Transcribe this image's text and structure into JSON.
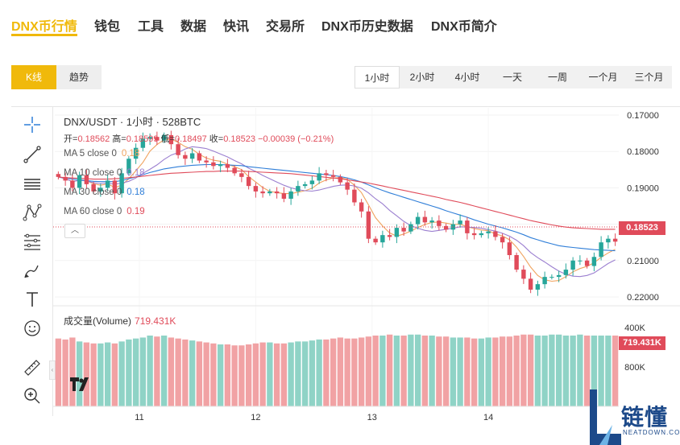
{
  "nav": {
    "items": [
      {
        "label": "DNX币行情",
        "active": true
      },
      {
        "label": "钱包"
      },
      {
        "label": "工具"
      },
      {
        "label": "数据"
      },
      {
        "label": "快讯"
      },
      {
        "label": "交易所"
      },
      {
        "label": "DNX币历史数据"
      },
      {
        "label": "DNX币简介"
      }
    ]
  },
  "mode": {
    "kline": "K线",
    "trend": "趋势",
    "active": "K线"
  },
  "intervals": {
    "items": [
      "1小时",
      "2小时",
      "4小时",
      "一天",
      "一周",
      "一个月",
      "三个月"
    ],
    "active": "1小时"
  },
  "legend": {
    "title": "DNX/USDT · 1小时 · 528BTC",
    "open_label": "开=",
    "open": "0.18562",
    "high_label": "高=",
    "high": "0.18599",
    "low_label": "低=",
    "low": "0.18497",
    "close_label": "收=",
    "close": "0.18523",
    "change": "−0.00039 (−0.21%)",
    "ma": [
      {
        "label": "MA 5 close 0",
        "value": "0.18",
        "color": "#f0a35e"
      },
      {
        "label": "MA 10 close 0",
        "value": "0.18",
        "color": "#9b7fd0"
      },
      {
        "label": "MA 30 close 0",
        "value": "0.18",
        "color": "#2f7ed8"
      },
      {
        "label": "MA 60 close 0",
        "value": "0.19",
        "color": "#e04b5a"
      }
    ],
    "collapse_icon": "chevron-up-icon"
  },
  "volume": {
    "label": "成交量(Volume)",
    "value": "719.431K"
  },
  "price_axis": {
    "ticks": [
      "0.22000",
      "0.21000",
      "0.20000",
      "0.19000",
      "0.18000",
      "0.17000"
    ],
    "current": "0.18523"
  },
  "volume_axis": {
    "ticks": [
      "800K",
      "400K"
    ],
    "current": "719.431K"
  },
  "time_axis": {
    "ticks": [
      "11",
      "12",
      "13",
      "14"
    ]
  },
  "toolbar": [
    "crosshair-icon",
    "trend-line-icon",
    "horizontal-lines-icon",
    "pattern-icon",
    "fib-icon",
    "brush-icon",
    "text-icon",
    "emoji-icon",
    "ruler-icon",
    "zoom-in-icon"
  ],
  "brand": {
    "cn": "链懂",
    "en": "NEATDOWN.COM"
  },
  "colors": {
    "accent": "#f0b90b",
    "up": "#26a69a",
    "down": "#e04b5a",
    "up_volume": "#8fd3c6",
    "down_volume": "#f1a2a4"
  },
  "chart_data": {
    "type": "candlestick",
    "title": "DNX/USDT · 1小时 · 528BTC",
    "ylim": [
      0.168,
      0.222
    ],
    "y_ticks": [
      0.17,
      0.18,
      0.19,
      0.2,
      0.21,
      0.22
    ],
    "x_ticks": [
      "11",
      "12",
      "13",
      "14"
    ],
    "x_tick_positions": [
      12,
      28.5,
      45,
      61.5
    ],
    "volume_ylim": [
      0,
      900
    ],
    "volume_ticks": [
      400,
      800
    ],
    "close": [
      0.203,
      0.202,
      0.2,
      0.2035,
      0.201,
      0.199,
      0.2,
      0.202,
      0.1985,
      0.204,
      0.208,
      0.211,
      0.2135,
      0.214,
      0.213,
      0.2145,
      0.212,
      0.209,
      0.208,
      0.2095,
      0.2075,
      0.207,
      0.206,
      0.2065,
      0.2055,
      0.204,
      0.203,
      0.2005,
      0.199,
      0.1985,
      0.199,
      0.1985,
      0.197,
      0.199,
      0.2005,
      0.201,
      0.202,
      0.204,
      0.2035,
      0.203,
      0.2015,
      0.1995,
      0.196,
      0.1935,
      0.186,
      0.185,
      0.187,
      0.1865,
      0.189,
      0.188,
      0.19,
      0.192,
      0.1905,
      0.191,
      0.1895,
      0.1885,
      0.19,
      0.191,
      0.1875,
      0.187,
      0.1875,
      0.188,
      0.1865,
      0.185,
      0.1815,
      0.1775,
      0.175,
      0.172,
      0.1735,
      0.1755,
      0.1755,
      0.176,
      0.1775,
      0.18,
      0.18,
      0.1785,
      0.181,
      0.185,
      0.186,
      0.1852
    ],
    "volume": [
      690,
      680,
      700,
      660,
      650,
      640,
      640,
      650,
      640,
      660,
      680,
      690,
      700,
      720,
      710,
      720,
      700,
      690,
      680,
      670,
      660,
      650,
      640,
      630,
      630,
      620,
      620,
      630,
      640,
      650,
      650,
      640,
      640,
      650,
      660,
      660,
      670,
      680,
      680,
      690,
      700,
      690,
      690,
      700,
      710,
      720,
      720,
      730,
      720,
      720,
      730,
      730,
      720,
      720,
      710,
      710,
      700,
      700,
      700,
      690,
      690,
      700,
      700,
      710,
      710,
      720,
      730,
      730,
      720,
      720,
      730,
      730,
      720,
      720,
      730,
      720,
      720,
      720,
      720,
      720
    ],
    "ma_series": [
      {
        "name": "MA 5",
        "values": [
          0.203,
          0.2025,
          0.2017,
          0.2021,
          0.2019,
          0.2011,
          0.2007,
          0.2011,
          0.2001,
          0.2007,
          0.2025,
          0.2047,
          0.207,
          0.2101,
          0.2119,
          0.2132,
          0.2134,
          0.2125,
          0.2113,
          0.2106,
          0.2092,
          0.2082,
          0.2076,
          0.2073,
          0.2065,
          0.2058,
          0.205,
          0.2031,
          0.2016,
          0.2001,
          0.199,
          0.1987,
          0.1984,
          0.1984,
          0.1988,
          0.1992,
          0.1999,
          0.2013,
          0.2022,
          0.2027,
          0.2028,
          0.2023,
          0.2007,
          0.1987,
          0.1953,
          0.1918,
          0.1895,
          0.1876,
          0.1867,
          0.1873,
          0.1881,
          0.1891,
          0.1899,
          0.1905,
          0.1906,
          0.1903,
          0.1899,
          0.19,
          0.1893,
          0.1888,
          0.1884,
          0.1882,
          0.1873,
          0.1868,
          0.1857,
          0.1837,
          0.1811,
          0.1782,
          0.1759,
          0.1747,
          0.1743,
          0.1745,
          0.1756,
          0.1769,
          0.1778,
          0.1784,
          0.1794,
          0.1809,
          0.1821,
          0.1831
        ]
      },
      {
        "name": "MA 10",
        "values": [
          0.203,
          0.2025,
          0.2017,
          0.2021,
          0.2019,
          0.2014,
          0.2012,
          0.2013,
          0.201,
          0.2013,
          0.2018,
          0.2027,
          0.204,
          0.2051,
          0.2063,
          0.2078,
          0.209,
          0.2097,
          0.2107,
          0.2113,
          0.2111,
          0.2108,
          0.2101,
          0.2093,
          0.2085,
          0.2075,
          0.2066,
          0.2054,
          0.2045,
          0.2034,
          0.2025,
          0.2016,
          0.2007,
          0.2,
          0.1995,
          0.1992,
          0.1991,
          0.1994,
          0.1999,
          0.2004,
          0.2007,
          0.2008,
          0.2005,
          0.1999,
          0.1986,
          0.197,
          0.1956,
          0.1938,
          0.1923,
          0.1908,
          0.1896,
          0.1889,
          0.1883,
          0.188,
          0.1883,
          0.1886,
          0.1889,
          0.1893,
          0.1892,
          0.1891,
          0.1889,
          0.1885,
          0.1881,
          0.1875,
          0.1867,
          0.1856,
          0.1841,
          0.1822,
          0.1808,
          0.1796,
          0.1783,
          0.1771,
          0.1762,
          0.1757,
          0.1756,
          0.1759,
          0.1766,
          0.1779,
          0.1792,
          0.1802
        ]
      },
      {
        "name": "MA 30",
        "values": [
          0.203,
          0.2027,
          0.2024,
          0.2022,
          0.202,
          0.2018,
          0.2017,
          0.2017,
          0.2017,
          0.202,
          0.2025,
          0.203,
          0.2036,
          0.2042,
          0.2047,
          0.2052,
          0.2055,
          0.2058,
          0.206,
          0.2062,
          0.2063,
          0.2064,
          0.2064,
          0.2064,
          0.2063,
          0.2062,
          0.2061,
          0.2058,
          0.2056,
          0.2054,
          0.2052,
          0.205,
          0.2048,
          0.2046,
          0.2044,
          0.2042,
          0.204,
          0.2038,
          0.2036,
          0.2034,
          0.2031,
          0.2027,
          0.2022,
          0.2016,
          0.2008,
          0.2,
          0.1993,
          0.1986,
          0.198,
          0.1974,
          0.1968,
          0.1962,
          0.1956,
          0.195,
          0.1944,
          0.1937,
          0.1931,
          0.1925,
          0.1919,
          0.1912,
          0.1906,
          0.19,
          0.1895,
          0.189,
          0.1884,
          0.1878,
          0.1871,
          0.1863,
          0.1857,
          0.1851,
          0.1846,
          0.1841,
          0.1838,
          0.1836,
          0.1834,
          0.1832,
          0.183,
          0.1829,
          0.1828,
          0.1827
        ]
      },
      {
        "name": "MA 60",
        "values": [
          0.203,
          0.2028,
          0.2027,
          0.2026,
          0.2025,
          0.2024,
          0.2024,
          0.2024,
          0.2025,
          0.2026,
          0.2028,
          0.203,
          0.2032,
          0.2034,
          0.2036,
          0.2038,
          0.204,
          0.2041,
          0.2042,
          0.2043,
          0.2044,
          0.2045,
          0.2045,
          0.2046,
          0.2046,
          0.2046,
          0.2046,
          0.2045,
          0.2044,
          0.2043,
          0.2042,
          0.2041,
          0.204,
          0.2039,
          0.2037,
          0.2035,
          0.2033,
          0.2031,
          0.2029,
          0.2027,
          0.2025,
          0.2022,
          0.2019,
          0.2016,
          0.2013,
          0.2009,
          0.2005,
          0.2001,
          0.1997,
          0.1993,
          0.1989,
          0.1985,
          0.1981,
          0.1977,
          0.1973,
          0.1968,
          0.1964,
          0.196,
          0.1955,
          0.195,
          0.1945,
          0.194,
          0.1935,
          0.193,
          0.1925,
          0.192,
          0.1915,
          0.191,
          0.1906,
          0.1902,
          0.1898,
          0.1895,
          0.1892,
          0.189,
          0.1889,
          0.1888,
          0.1887,
          0.1886,
          0.1886,
          0.1886
        ]
      }
    ]
  }
}
